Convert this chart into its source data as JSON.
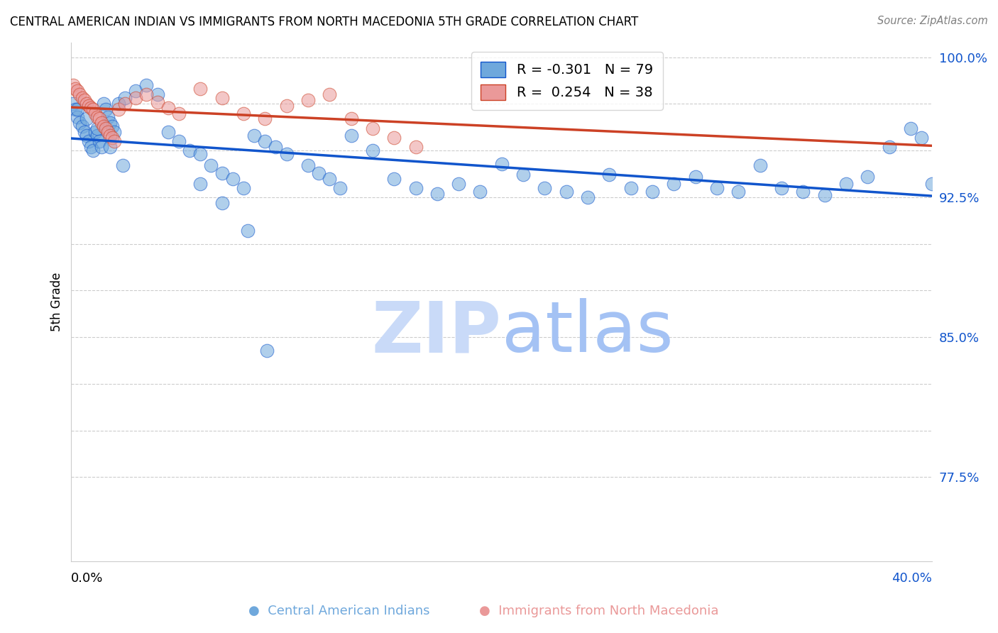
{
  "title": "CENTRAL AMERICAN INDIAN VS IMMIGRANTS FROM NORTH MACEDONIA 5TH GRADE CORRELATION CHART",
  "source": "Source: ZipAtlas.com",
  "ylabel": "5th Grade",
  "xmin": 0.0,
  "xmax": 0.4,
  "ymin": 0.73,
  "ymax": 1.008,
  "blue_R": -0.301,
  "blue_N": 79,
  "pink_R": 0.254,
  "pink_N": 38,
  "blue_color": "#6fa8dc",
  "pink_color": "#ea9999",
  "blue_line_color": "#1155cc",
  "pink_line_color": "#cc4125",
  "watermark_zip_color": "#c9daf8",
  "watermark_atlas_color": "#a4c2f4",
  "grid_color": "#cccccc",
  "blue_x": [
    0.001,
    0.002,
    0.003,
    0.004,
    0.005,
    0.006,
    0.007,
    0.008,
    0.009,
    0.01,
    0.011,
    0.012,
    0.013,
    0.014,
    0.015,
    0.016,
    0.017,
    0.018,
    0.019,
    0.02,
    0.022,
    0.025,
    0.03,
    0.035,
    0.04,
    0.045,
    0.05,
    0.055,
    0.06,
    0.065,
    0.07,
    0.075,
    0.08,
    0.085,
    0.09,
    0.095,
    0.1,
    0.11,
    0.115,
    0.12,
    0.125,
    0.13,
    0.14,
    0.15,
    0.16,
    0.17,
    0.18,
    0.19,
    0.2,
    0.21,
    0.22,
    0.23,
    0.24,
    0.25,
    0.26,
    0.27,
    0.28,
    0.29,
    0.3,
    0.31,
    0.32,
    0.33,
    0.34,
    0.35,
    0.36,
    0.37,
    0.38,
    0.39,
    0.395,
    0.4,
    0.003,
    0.007,
    0.012,
    0.018,
    0.024,
    0.06,
    0.07,
    0.082,
    0.091
  ],
  "blue_y": [
    0.975,
    0.972,
    0.968,
    0.965,
    0.963,
    0.96,
    0.958,
    0.955,
    0.952,
    0.95,
    0.96,
    0.958,
    0.955,
    0.952,
    0.975,
    0.972,
    0.968,
    0.965,
    0.963,
    0.96,
    0.975,
    0.978,
    0.982,
    0.985,
    0.98,
    0.96,
    0.955,
    0.95,
    0.948,
    0.942,
    0.938,
    0.935,
    0.93,
    0.958,
    0.955,
    0.952,
    0.948,
    0.942,
    0.938,
    0.935,
    0.93,
    0.958,
    0.95,
    0.935,
    0.93,
    0.927,
    0.932,
    0.928,
    0.943,
    0.937,
    0.93,
    0.928,
    0.925,
    0.937,
    0.93,
    0.928,
    0.932,
    0.936,
    0.93,
    0.928,
    0.942,
    0.93,
    0.928,
    0.926,
    0.932,
    0.936,
    0.952,
    0.962,
    0.957,
    0.932,
    0.972,
    0.967,
    0.962,
    0.952,
    0.942,
    0.932,
    0.922,
    0.907,
    0.843
  ],
  "pink_x": [
    0.001,
    0.002,
    0.003,
    0.004,
    0.005,
    0.006,
    0.007,
    0.008,
    0.009,
    0.01,
    0.011,
    0.012,
    0.013,
    0.014,
    0.015,
    0.016,
    0.017,
    0.018,
    0.019,
    0.02,
    0.022,
    0.025,
    0.03,
    0.035,
    0.04,
    0.045,
    0.05,
    0.06,
    0.07,
    0.08,
    0.09,
    0.1,
    0.11,
    0.12,
    0.13,
    0.14,
    0.15,
    0.16
  ],
  "pink_y": [
    0.985,
    0.983,
    0.982,
    0.98,
    0.978,
    0.977,
    0.975,
    0.974,
    0.973,
    0.972,
    0.97,
    0.968,
    0.967,
    0.965,
    0.963,
    0.962,
    0.96,
    0.958,
    0.957,
    0.955,
    0.972,
    0.975,
    0.978,
    0.98,
    0.976,
    0.973,
    0.97,
    0.983,
    0.978,
    0.97,
    0.967,
    0.974,
    0.977,
    0.98,
    0.967,
    0.962,
    0.957,
    0.952
  ],
  "ytick_positions": [
    0.775,
    0.8,
    0.825,
    0.85,
    0.875,
    0.9,
    0.925,
    0.95,
    0.975,
    1.0
  ],
  "ytick_labels": [
    "77.5%",
    "",
    "",
    "85.0%",
    "",
    "",
    "92.5%",
    "",
    "",
    "100.0%"
  ]
}
